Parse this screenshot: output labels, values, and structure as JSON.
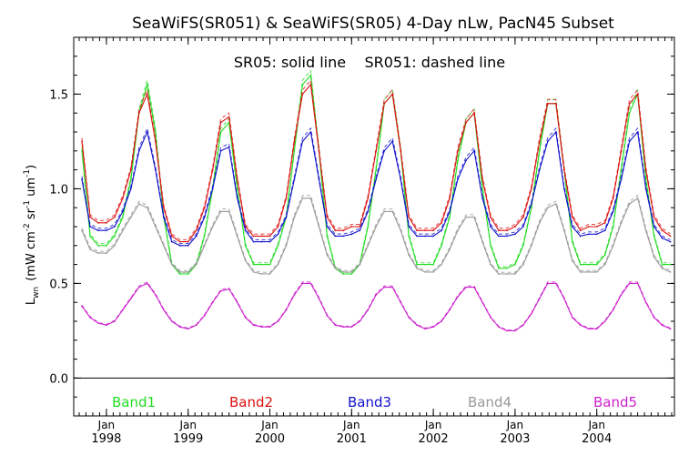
{
  "chart_data": {
    "type": "line",
    "title": "SeaWiFS(SR051) & SeaWiFS(SR05) 4-Day nLw, PacN45 Subset",
    "subtitle": "SR05: solid line    SR051: dashed line",
    "ylabel": "L",
    "ylabel_sub": "wn",
    "ylabel_units": "(mW cm",
    "ylabel_units_parts": [
      "(mW cm",
      "-2",
      " sr",
      "-1",
      " um",
      "-1",
      ")"
    ],
    "xlim": [
      1997.6,
      2004.95
    ],
    "ylim": [
      -0.2,
      1.8
    ],
    "yticks": [
      0.0,
      0.5,
      1.0,
      1.5
    ],
    "ytick_labels": [
      "0.0",
      "0.5",
      "1.0",
      "1.5"
    ],
    "xticks": [
      1998.0,
      1999.0,
      2000.0,
      2001.0,
      2002.0,
      2003.0,
      2004.0
    ],
    "xtick_labels_month": [
      "Jan",
      "Jan",
      "Jan",
      "Jan",
      "Jan",
      "Jan",
      "Jan"
    ],
    "xtick_labels_year": [
      "1998",
      "1999",
      "2000",
      "2001",
      "2002",
      "2003",
      "2004"
    ],
    "zero_line": 0.0,
    "legend_position": "bottom",
    "series": [
      {
        "name": "Band1",
        "color": "#22dd22",
        "x": [
          1997.7,
          1997.8,
          1997.9,
          1998.0,
          1998.1,
          1998.2,
          1998.3,
          1998.4,
          1998.5,
          1998.6,
          1998.7,
          1998.8,
          1998.9,
          1999.0,
          1999.1,
          1999.2,
          1999.3,
          1999.4,
          1999.5,
          1999.6,
          1999.7,
          1999.8,
          1999.9,
          2000.0,
          2000.1,
          2000.2,
          2000.3,
          2000.4,
          2000.5,
          2000.6,
          2000.7,
          2000.8,
          2000.9,
          2001.0,
          2001.1,
          2001.2,
          2001.3,
          2001.4,
          2001.5,
          2001.6,
          2001.7,
          2001.8,
          2001.9,
          2002.0,
          2002.1,
          2002.2,
          2002.3,
          2002.4,
          2002.5,
          2002.6,
          2002.7,
          2002.8,
          2002.9,
          2003.0,
          2003.1,
          2003.2,
          2003.3,
          2003.4,
          2003.5,
          2003.6,
          2003.7,
          2003.8,
          2003.9,
          2004.0,
          2004.1,
          2004.2,
          2004.3,
          2004.4,
          2004.5,
          2004.6,
          2004.7,
          2004.8,
          2004.9
        ],
        "values": [
          1.2,
          0.75,
          0.7,
          0.7,
          0.75,
          0.85,
          1.05,
          1.4,
          1.55,
          1.3,
          0.85,
          0.6,
          0.55,
          0.55,
          0.6,
          0.75,
          1.0,
          1.3,
          1.35,
          1.0,
          0.7,
          0.6,
          0.6,
          0.6,
          0.7,
          0.85,
          1.2,
          1.55,
          1.6,
          1.2,
          0.75,
          0.58,
          0.55,
          0.55,
          0.6,
          0.8,
          1.1,
          1.45,
          1.5,
          1.2,
          0.75,
          0.6,
          0.6,
          0.6,
          0.7,
          0.85,
          1.15,
          1.35,
          1.4,
          1.0,
          0.7,
          0.58,
          0.58,
          0.6,
          0.7,
          0.9,
          1.2,
          1.45,
          1.45,
          1.1,
          0.72,
          0.6,
          0.6,
          0.6,
          0.65,
          0.8,
          1.1,
          1.4,
          1.5,
          1.05,
          0.75,
          0.6,
          0.6
        ]
      },
      {
        "name": "Band2",
        "color": "#dd1111",
        "x": [
          1997.7,
          1997.8,
          1997.9,
          1998.0,
          1998.1,
          1998.2,
          1998.3,
          1998.4,
          1998.5,
          1998.6,
          1998.7,
          1998.8,
          1998.9,
          1999.0,
          1999.1,
          1999.2,
          1999.3,
          1999.4,
          1999.5,
          1999.6,
          1999.7,
          1999.8,
          1999.9,
          2000.0,
          2000.1,
          2000.2,
          2000.3,
          2000.4,
          2000.5,
          2000.6,
          2000.7,
          2000.8,
          2000.9,
          2001.0,
          2001.1,
          2001.2,
          2001.3,
          2001.4,
          2001.5,
          2001.6,
          2001.7,
          2001.8,
          2001.9,
          2002.0,
          2002.1,
          2002.2,
          2002.3,
          2002.4,
          2002.5,
          2002.6,
          2002.7,
          2002.8,
          2002.9,
          2003.0,
          2003.1,
          2003.2,
          2003.3,
          2003.4,
          2003.5,
          2003.6,
          2003.7,
          2003.8,
          2003.9,
          2004.0,
          2004.1,
          2004.2,
          2004.3,
          2004.4,
          2004.5,
          2004.6,
          2004.7,
          2004.8,
          2004.9
        ],
        "values": [
          1.25,
          0.85,
          0.82,
          0.82,
          0.85,
          0.95,
          1.1,
          1.4,
          1.5,
          1.25,
          0.9,
          0.75,
          0.72,
          0.72,
          0.78,
          0.9,
          1.1,
          1.35,
          1.38,
          1.05,
          0.8,
          0.75,
          0.75,
          0.75,
          0.8,
          0.95,
          1.25,
          1.5,
          1.55,
          1.2,
          0.85,
          0.78,
          0.78,
          0.8,
          0.8,
          0.95,
          1.2,
          1.45,
          1.5,
          1.2,
          0.85,
          0.78,
          0.78,
          0.78,
          0.82,
          0.95,
          1.2,
          1.35,
          1.4,
          1.05,
          0.85,
          0.78,
          0.78,
          0.8,
          0.85,
          1.0,
          1.25,
          1.45,
          1.45,
          1.1,
          0.85,
          0.78,
          0.8,
          0.8,
          0.82,
          0.95,
          1.2,
          1.45,
          1.5,
          1.1,
          0.85,
          0.78,
          0.75
        ]
      },
      {
        "name": "Band3",
        "color": "#1111cc",
        "x": [
          1997.7,
          1997.8,
          1997.9,
          1998.0,
          1998.1,
          1998.2,
          1998.3,
          1998.4,
          1998.5,
          1998.6,
          1998.7,
          1998.8,
          1998.9,
          1999.0,
          1999.1,
          1999.2,
          1999.3,
          1999.4,
          1999.5,
          1999.6,
          1999.7,
          1999.8,
          1999.9,
          2000.0,
          2000.1,
          2000.2,
          2000.3,
          2000.4,
          2000.5,
          2000.6,
          2000.7,
          2000.8,
          2000.9,
          2001.0,
          2001.1,
          2001.2,
          2001.3,
          2001.4,
          2001.5,
          2001.6,
          2001.7,
          2001.8,
          2001.9,
          2002.0,
          2002.1,
          2002.2,
          2002.3,
          2002.4,
          2002.5,
          2002.6,
          2002.7,
          2002.8,
          2002.9,
          2003.0,
          2003.1,
          2003.2,
          2003.3,
          2003.4,
          2003.5,
          2003.6,
          2003.7,
          2003.8,
          2003.9,
          2004.0,
          2004.1,
          2004.2,
          2004.3,
          2004.4,
          2004.5,
          2004.6,
          2004.7,
          2004.8,
          2004.9
        ],
        "values": [
          1.05,
          0.8,
          0.78,
          0.78,
          0.8,
          0.88,
          1.0,
          1.2,
          1.3,
          1.1,
          0.85,
          0.72,
          0.7,
          0.7,
          0.75,
          0.85,
          1.0,
          1.2,
          1.22,
          0.95,
          0.78,
          0.72,
          0.72,
          0.72,
          0.76,
          0.85,
          1.05,
          1.25,
          1.3,
          1.05,
          0.8,
          0.75,
          0.75,
          0.76,
          0.78,
          0.88,
          1.05,
          1.2,
          1.25,
          1.05,
          0.8,
          0.75,
          0.75,
          0.75,
          0.78,
          0.88,
          1.05,
          1.15,
          1.2,
          0.95,
          0.8,
          0.75,
          0.75,
          0.76,
          0.8,
          0.92,
          1.1,
          1.25,
          1.3,
          1.0,
          0.8,
          0.75,
          0.76,
          0.76,
          0.78,
          0.88,
          1.05,
          1.25,
          1.3,
          1.0,
          0.8,
          0.74,
          0.72
        ]
      },
      {
        "name": "Band4",
        "color": "#999999",
        "x": [
          1997.7,
          1997.8,
          1997.9,
          1998.0,
          1998.1,
          1998.2,
          1998.3,
          1998.4,
          1998.5,
          1998.6,
          1998.7,
          1998.8,
          1998.9,
          1999.0,
          1999.1,
          1999.2,
          1999.3,
          1999.4,
          1999.5,
          1999.6,
          1999.7,
          1999.8,
          1999.9,
          2000.0,
          2000.1,
          2000.2,
          2000.3,
          2000.4,
          2000.5,
          2000.6,
          2000.7,
          2000.8,
          2000.9,
          2001.0,
          2001.1,
          2001.2,
          2001.3,
          2001.4,
          2001.5,
          2001.6,
          2001.7,
          2001.8,
          2001.9,
          2002.0,
          2002.1,
          2002.2,
          2002.3,
          2002.4,
          2002.5,
          2002.6,
          2002.7,
          2002.8,
          2002.9,
          2003.0,
          2003.1,
          2003.2,
          2003.3,
          2003.4,
          2003.5,
          2003.6,
          2003.7,
          2003.8,
          2003.9,
          2004.0,
          2004.1,
          2004.2,
          2004.3,
          2004.4,
          2004.5,
          2004.6,
          2004.7,
          2004.8,
          2004.9
        ],
        "values": [
          0.78,
          0.68,
          0.66,
          0.66,
          0.7,
          0.78,
          0.85,
          0.92,
          0.9,
          0.8,
          0.7,
          0.6,
          0.56,
          0.56,
          0.6,
          0.7,
          0.8,
          0.88,
          0.88,
          0.75,
          0.62,
          0.56,
          0.55,
          0.55,
          0.6,
          0.7,
          0.85,
          0.95,
          0.95,
          0.8,
          0.65,
          0.58,
          0.56,
          0.56,
          0.6,
          0.7,
          0.8,
          0.88,
          0.88,
          0.78,
          0.65,
          0.58,
          0.56,
          0.56,
          0.6,
          0.68,
          0.78,
          0.85,
          0.85,
          0.72,
          0.6,
          0.55,
          0.55,
          0.55,
          0.6,
          0.7,
          0.82,
          0.9,
          0.92,
          0.78,
          0.62,
          0.56,
          0.56,
          0.56,
          0.6,
          0.7,
          0.82,
          0.92,
          0.95,
          0.78,
          0.64,
          0.58,
          0.56
        ]
      },
      {
        "name": "Band5",
        "color": "#cc22cc",
        "x": [
          1997.7,
          1997.8,
          1997.9,
          1998.0,
          1998.1,
          1998.2,
          1998.3,
          1998.4,
          1998.5,
          1998.6,
          1998.7,
          1998.8,
          1998.9,
          1999.0,
          1999.1,
          1999.2,
          1999.3,
          1999.4,
          1999.5,
          1999.6,
          1999.7,
          1999.8,
          1999.9,
          2000.0,
          2000.1,
          2000.2,
          2000.3,
          2000.4,
          2000.5,
          2000.6,
          2000.7,
          2000.8,
          2000.9,
          2001.0,
          2001.1,
          2001.2,
          2001.3,
          2001.4,
          2001.5,
          2001.6,
          2001.7,
          2001.8,
          2001.9,
          2002.0,
          2002.1,
          2002.2,
          2002.3,
          2002.4,
          2002.5,
          2002.6,
          2002.7,
          2002.8,
          2002.9,
          2003.0,
          2003.1,
          2003.2,
          2003.3,
          2003.4,
          2003.5,
          2003.6,
          2003.7,
          2003.8,
          2003.9,
          2004.0,
          2004.1,
          2004.2,
          2004.3,
          2004.4,
          2004.5,
          2004.6,
          2004.7,
          2004.8,
          2004.9
        ],
        "values": [
          0.38,
          0.32,
          0.29,
          0.28,
          0.3,
          0.36,
          0.42,
          0.48,
          0.5,
          0.44,
          0.36,
          0.3,
          0.27,
          0.26,
          0.28,
          0.33,
          0.4,
          0.46,
          0.47,
          0.4,
          0.32,
          0.28,
          0.27,
          0.27,
          0.3,
          0.36,
          0.44,
          0.5,
          0.5,
          0.42,
          0.33,
          0.28,
          0.27,
          0.27,
          0.3,
          0.36,
          0.44,
          0.48,
          0.48,
          0.4,
          0.32,
          0.28,
          0.26,
          0.27,
          0.3,
          0.36,
          0.43,
          0.48,
          0.48,
          0.4,
          0.32,
          0.27,
          0.25,
          0.25,
          0.28,
          0.34,
          0.42,
          0.5,
          0.5,
          0.42,
          0.32,
          0.28,
          0.26,
          0.26,
          0.3,
          0.36,
          0.44,
          0.5,
          0.5,
          0.4,
          0.32,
          0.28,
          0.26
        ]
      }
    ]
  }
}
